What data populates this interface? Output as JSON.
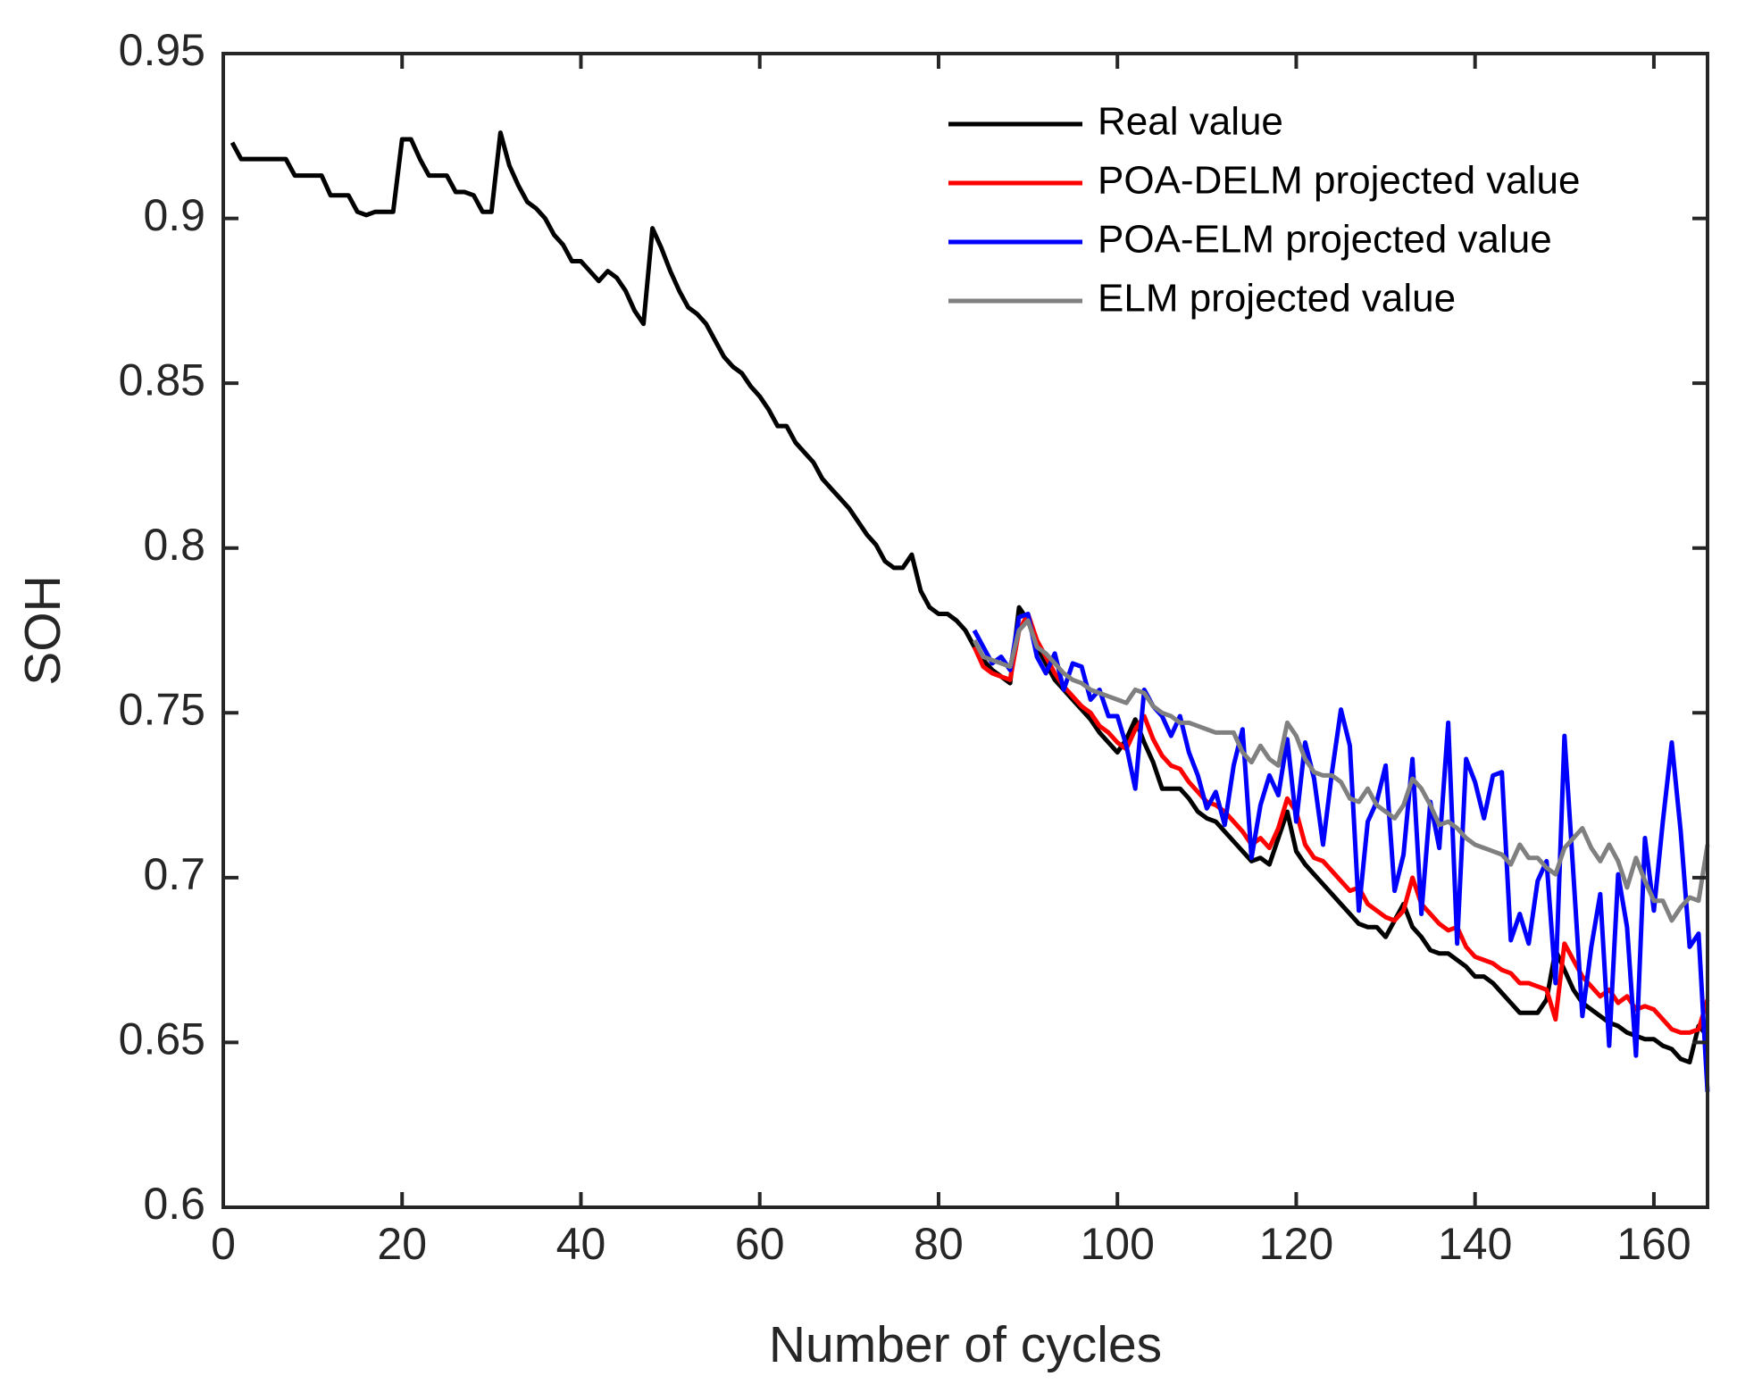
{
  "chart_data": {
    "type": "line",
    "xlabel": "Number of cycles",
    "ylabel": "SOH",
    "xlim": [
      0,
      166
    ],
    "ylim": [
      0.6,
      0.95
    ],
    "xticks": [
      0,
      20,
      40,
      60,
      80,
      100,
      120,
      140,
      160
    ],
    "yticks": [
      0.6,
      0.65,
      0.7,
      0.75,
      0.8,
      0.85,
      0.9,
      0.95
    ],
    "legend": "northeast",
    "x": [
      1,
      2,
      3,
      4,
      5,
      6,
      7,
      8,
      9,
      10,
      11,
      12,
      13,
      14,
      15,
      16,
      17,
      18,
      19,
      20,
      21,
      22,
      23,
      24,
      25,
      26,
      27,
      28,
      29,
      30,
      31,
      32,
      33,
      34,
      35,
      36,
      37,
      38,
      39,
      40,
      41,
      42,
      43,
      44,
      45,
      46,
      47,
      48,
      49,
      50,
      51,
      52,
      53,
      54,
      55,
      56,
      57,
      58,
      59,
      60,
      61,
      62,
      63,
      64,
      65,
      66,
      67,
      68,
      69,
      70,
      71,
      72,
      73,
      74,
      75,
      76,
      77,
      78,
      79,
      80,
      81,
      82,
      83,
      84,
      85,
      86,
      87,
      88,
      89,
      90,
      91,
      92,
      93,
      94,
      95,
      96,
      97,
      98,
      99,
      100,
      101,
      102,
      103,
      104,
      105,
      106,
      107,
      108,
      109,
      110,
      111,
      112,
      113,
      114,
      115,
      116,
      117,
      118,
      119,
      120,
      121,
      122,
      123,
      124,
      125,
      126,
      127,
      128,
      129,
      130,
      131,
      132,
      133,
      134,
      135,
      136,
      137,
      138,
      139,
      140,
      141,
      142,
      143,
      144,
      145,
      146,
      147,
      148,
      149,
      150,
      151,
      152,
      153,
      154,
      155,
      156,
      157,
      158,
      159,
      160,
      161,
      162,
      163,
      164,
      165,
      166
    ],
    "series": [
      {
        "name": "Real value",
        "color": "#000000",
        "values": [
          0.923,
          0.918,
          0.918,
          0.918,
          0.918,
          0.918,
          0.918,
          0.913,
          0.913,
          0.913,
          0.913,
          0.907,
          0.907,
          0.907,
          0.902,
          0.901,
          0.902,
          0.902,
          0.902,
          0.924,
          0.924,
          0.918,
          0.913,
          0.913,
          0.913,
          0.908,
          0.908,
          0.907,
          0.902,
          0.902,
          0.926,
          0.916,
          0.91,
          0.905,
          0.903,
          0.9,
          0.895,
          0.892,
          0.887,
          0.887,
          0.884,
          0.881,
          0.884,
          0.882,
          0.878,
          0.872,
          0.868,
          0.897,
          0.891,
          0.884,
          0.878,
          0.873,
          0.871,
          0.868,
          0.863,
          0.858,
          0.855,
          0.853,
          0.849,
          0.846,
          0.842,
          0.837,
          0.837,
          0.832,
          0.829,
          0.826,
          0.821,
          0.818,
          0.815,
          0.812,
          0.808,
          0.804,
          0.801,
          0.796,
          0.794,
          0.794,
          0.798,
          0.787,
          0.782,
          0.78,
          0.78,
          0.778,
          0.775,
          0.77,
          0.766,
          0.763,
          0.761,
          0.759,
          0.782,
          0.778,
          0.77,
          0.765,
          0.76,
          0.757,
          0.754,
          0.751,
          0.748,
          0.744,
          0.741,
          0.738,
          0.742,
          0.748,
          0.741,
          0.735,
          0.727,
          0.727,
          0.727,
          0.724,
          0.72,
          0.718,
          0.717,
          0.714,
          0.711,
          0.708,
          0.705,
          0.706,
          0.704,
          0.712,
          0.72,
          0.708,
          0.704,
          0.701,
          0.698,
          0.695,
          0.692,
          0.689,
          0.686,
          0.685,
          0.685,
          0.682,
          0.687,
          0.692,
          0.685,
          0.682,
          0.678,
          0.677,
          0.677,
          0.675,
          0.673,
          0.67,
          0.67,
          0.668,
          0.665,
          0.662,
          0.659,
          0.659,
          0.659,
          0.663,
          0.678,
          0.672,
          0.666,
          0.662,
          0.66,
          0.658,
          0.656,
          0.655,
          0.653,
          0.652,
          0.651,
          0.651,
          0.649,
          0.648,
          0.645,
          0.644,
          0.655,
          0.652
        ]
      },
      {
        "name": "POA-DELM projected value",
        "color": "#ff0000",
        "values": [
          null,
          null,
          null,
          null,
          null,
          null,
          null,
          null,
          null,
          null,
          null,
          null,
          null,
          null,
          null,
          null,
          null,
          null,
          null,
          null,
          null,
          null,
          null,
          null,
          null,
          null,
          null,
          null,
          null,
          null,
          null,
          null,
          null,
          null,
          null,
          null,
          null,
          null,
          null,
          null,
          null,
          null,
          null,
          null,
          null,
          null,
          null,
          null,
          null,
          null,
          null,
          null,
          null,
          null,
          null,
          null,
          null,
          null,
          null,
          null,
          null,
          null,
          null,
          null,
          null,
          null,
          null,
          null,
          null,
          null,
          null,
          null,
          null,
          null,
          null,
          null,
          null,
          null,
          null,
          null,
          null,
          null,
          null,
          0.77,
          0.764,
          0.762,
          0.761,
          0.76,
          0.775,
          0.78,
          0.772,
          0.767,
          0.762,
          0.758,
          0.755,
          0.752,
          0.75,
          0.746,
          0.744,
          0.741,
          0.739,
          0.745,
          0.749,
          0.742,
          0.737,
          0.734,
          0.733,
          0.729,
          0.726,
          0.723,
          0.722,
          0.72,
          0.717,
          0.714,
          0.71,
          0.712,
          0.709,
          0.715,
          0.724,
          0.72,
          0.71,
          0.706,
          0.705,
          0.702,
          0.699,
          0.696,
          0.697,
          0.692,
          0.69,
          0.688,
          0.687,
          0.69,
          0.7,
          0.692,
          0.689,
          0.686,
          0.684,
          0.685,
          0.679,
          0.676,
          0.675,
          0.674,
          0.672,
          0.671,
          0.668,
          0.668,
          0.667,
          0.666,
          0.657,
          0.68,
          0.675,
          0.67,
          0.667,
          0.664,
          0.666,
          0.662,
          0.664,
          0.66,
          0.661,
          0.66,
          0.657,
          0.654,
          0.653,
          0.653,
          0.654,
          0.663
        ]
      },
      {
        "name": "POA-ELM projected value",
        "color": "#0000ff",
        "values": [
          null,
          null,
          null,
          null,
          null,
          null,
          null,
          null,
          null,
          null,
          null,
          null,
          null,
          null,
          null,
          null,
          null,
          null,
          null,
          null,
          null,
          null,
          null,
          null,
          null,
          null,
          null,
          null,
          null,
          null,
          null,
          null,
          null,
          null,
          null,
          null,
          null,
          null,
          null,
          null,
          null,
          null,
          null,
          null,
          null,
          null,
          null,
          null,
          null,
          null,
          null,
          null,
          null,
          null,
          null,
          null,
          null,
          null,
          null,
          null,
          null,
          null,
          null,
          null,
          null,
          null,
          null,
          null,
          null,
          null,
          null,
          null,
          null,
          null,
          null,
          null,
          null,
          null,
          null,
          null,
          null,
          null,
          null,
          0.775,
          0.77,
          0.765,
          0.767,
          0.763,
          0.779,
          0.78,
          0.767,
          0.762,
          0.768,
          0.757,
          0.765,
          0.764,
          0.754,
          0.757,
          0.749,
          0.749,
          0.74,
          0.727,
          0.757,
          0.752,
          0.749,
          0.743,
          0.749,
          0.738,
          0.731,
          0.721,
          0.726,
          0.716,
          0.734,
          0.745,
          0.706,
          0.722,
          0.731,
          0.725,
          0.742,
          0.717,
          0.741,
          0.73,
          0.71,
          0.732,
          0.751,
          0.74,
          0.69,
          0.717,
          0.723,
          0.734,
          0.696,
          0.707,
          0.736,
          0.689,
          0.723,
          0.709,
          0.747,
          0.68,
          0.736,
          0.729,
          0.718,
          0.731,
          0.732,
          0.681,
          0.689,
          0.68,
          0.699,
          0.705,
          0.668,
          0.743,
          0.701,
          0.658,
          0.679,
          0.695,
          0.649,
          0.701,
          0.685,
          0.646,
          0.712,
          0.69,
          0.717,
          0.741,
          0.714,
          0.679,
          0.683,
          0.635
        ]
      },
      {
        "name": "ELM projected value",
        "color": "#808080",
        "values": [
          null,
          null,
          null,
          null,
          null,
          null,
          null,
          null,
          null,
          null,
          null,
          null,
          null,
          null,
          null,
          null,
          null,
          null,
          null,
          null,
          null,
          null,
          null,
          null,
          null,
          null,
          null,
          null,
          null,
          null,
          null,
          null,
          null,
          null,
          null,
          null,
          null,
          null,
          null,
          null,
          null,
          null,
          null,
          null,
          null,
          null,
          null,
          null,
          null,
          null,
          null,
          null,
          null,
          null,
          null,
          null,
          null,
          null,
          null,
          null,
          null,
          null,
          null,
          null,
          null,
          null,
          null,
          null,
          null,
          null,
          null,
          null,
          null,
          null,
          null,
          null,
          null,
          null,
          null,
          null,
          null,
          null,
          null,
          0.772,
          0.767,
          0.766,
          0.765,
          0.764,
          0.775,
          0.778,
          0.77,
          0.768,
          0.765,
          0.762,
          0.76,
          0.759,
          0.757,
          0.756,
          0.755,
          0.754,
          0.753,
          0.757,
          0.756,
          0.752,
          0.75,
          0.749,
          0.747,
          0.747,
          0.746,
          0.745,
          0.744,
          0.744,
          0.744,
          0.738,
          0.735,
          0.74,
          0.736,
          0.734,
          0.747,
          0.743,
          0.736,
          0.732,
          0.731,
          0.731,
          0.729,
          0.724,
          0.723,
          0.727,
          0.722,
          0.72,
          0.718,
          0.722,
          0.73,
          0.727,
          0.722,
          0.716,
          0.717,
          0.715,
          0.712,
          0.71,
          0.709,
          0.708,
          0.707,
          0.704,
          0.71,
          0.706,
          0.706,
          0.703,
          0.701,
          0.709,
          0.712,
          0.715,
          0.709,
          0.705,
          0.71,
          0.705,
          0.697,
          0.706,
          0.699,
          0.693,
          0.693,
          0.687,
          0.691,
          0.694,
          0.693,
          0.71
        ]
      }
    ]
  }
}
